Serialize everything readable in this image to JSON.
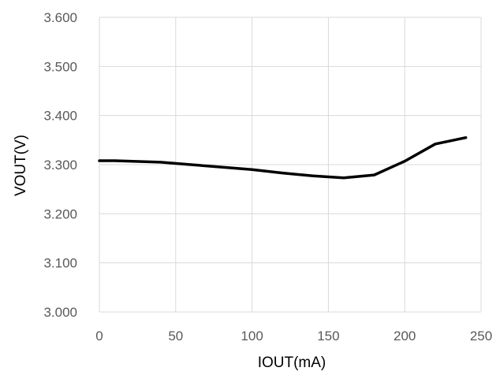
{
  "chart_data": {
    "type": "line",
    "title": "",
    "xlabel": "IOUT(mA)",
    "ylabel": "VOUT(V)",
    "xlim": [
      0,
      250
    ],
    "ylim": [
      3.0,
      3.6
    ],
    "x_ticks": [
      0,
      50,
      100,
      150,
      200,
      250
    ],
    "x_tick_labels": [
      "0",
      "50",
      "100",
      "150",
      "200",
      "250"
    ],
    "y_ticks": [
      3.0,
      3.1,
      3.2,
      3.3,
      3.4,
      3.5,
      3.6
    ],
    "y_tick_labels": [
      "3.000",
      "3.100",
      "3.200",
      "3.300",
      "3.400",
      "3.500",
      "3.600"
    ],
    "grid": true,
    "legend": "none",
    "series": [
      {
        "color": "#000000",
        "x": [
          0,
          10,
          20,
          40,
          60,
          80,
          100,
          120,
          140,
          160,
          180,
          200,
          220,
          240
        ],
        "y": [
          3.308,
          3.308,
          3.307,
          3.305,
          3.3,
          3.295,
          3.29,
          3.283,
          3.277,
          3.273,
          3.279,
          3.307,
          3.342,
          3.355
        ]
      }
    ]
  }
}
